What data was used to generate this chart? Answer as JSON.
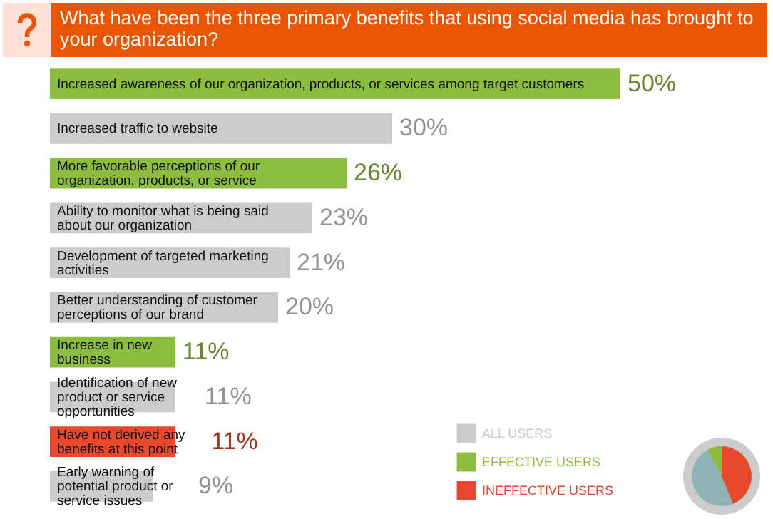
{
  "chart_data": {
    "type": "bar",
    "orientation": "horizontal",
    "stacked": true,
    "title": "What have been the three primary benefits that using social media has brought to your organization?",
    "categories": [
      "Increased awareness of our organization, products, or services among target customers",
      "Increased traffic to website",
      "More favorable perceptions of our organization, products, or service",
      "Ability to monitor what is being said about our organization",
      "Development of targeted marketing activities",
      "Better understanding of customer perceptions of our brand",
      "Increase in new business",
      "Identification of new product or service opportunities",
      "Have not derived any benefits at this point",
      "Early warning of potential product or service issues"
    ],
    "series": [
      {
        "name": "ALL USERS",
        "color": "#cccccc",
        "values": [
          null,
          30,
          null,
          23,
          21,
          20,
          null,
          11,
          null,
          9
        ],
        "value_labels": [
          null,
          "30%",
          null,
          "23%",
          "21%",
          "20%",
          null,
          "11%",
          null,
          "9%"
        ]
      },
      {
        "name": "EFFECTIVE USERS",
        "color": "#8cbd3f",
        "values": [
          50,
          null,
          26,
          null,
          null,
          null,
          11,
          null,
          null,
          null
        ],
        "value_labels": [
          "50%",
          null,
          "26%",
          null,
          null,
          null,
          "11%",
          null,
          null,
          null
        ]
      },
      {
        "name": "INEFFECTIVE USERS",
        "color": "#e8482c",
        "values": [
          null,
          null,
          null,
          null,
          null,
          null,
          null,
          null,
          11,
          null
        ],
        "value_labels": [
          null,
          null,
          null,
          null,
          null,
          null,
          null,
          null,
          "11%",
          null
        ]
      }
    ],
    "legend": "bottom right",
    "tick_labels": false,
    "grid": false
  }
}
